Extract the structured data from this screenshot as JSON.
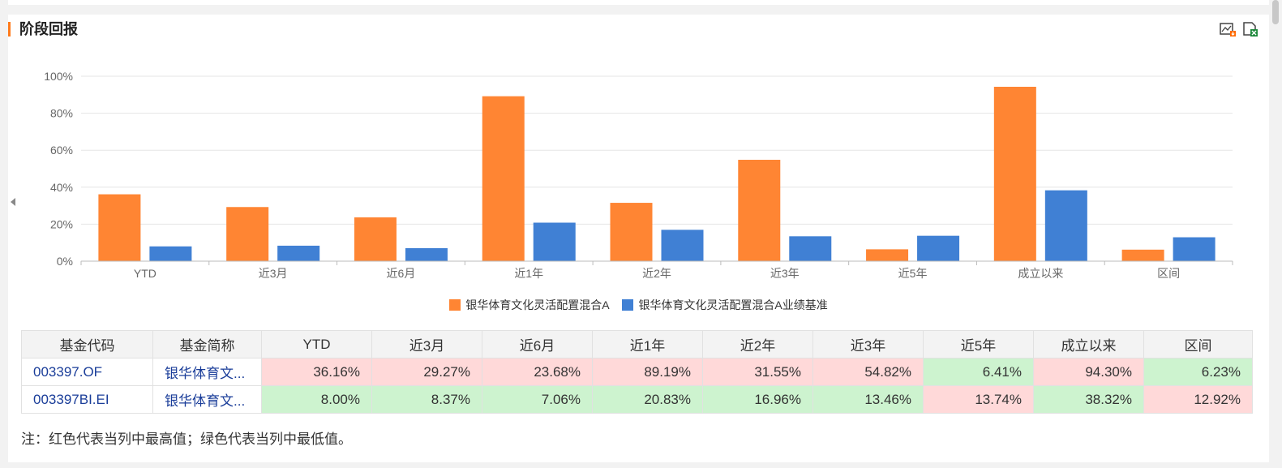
{
  "panel": {
    "title": "阶段回报"
  },
  "toolbar": {
    "icons": [
      "chart-download-icon",
      "excel-export-icon"
    ]
  },
  "colors": {
    "accent": "#ff7a1a",
    "fund": "#ff8533",
    "benchmark": "#4080d4",
    "highest": "#ffd9d9",
    "lowest": "#cdf3cf"
  },
  "chart_data": {
    "type": "bar",
    "categories": [
      "YTD",
      "近3月",
      "近6月",
      "近1年",
      "近2年",
      "近3年",
      "近5年",
      "成立以来",
      "区间"
    ],
    "series": [
      {
        "name": "银华体育文化灵活配置混合A",
        "values": [
          36.16,
          29.27,
          23.68,
          89.19,
          31.55,
          54.82,
          6.41,
          94.3,
          6.23
        ]
      },
      {
        "name": "银华体育文化灵活配置混合A业绩基准",
        "values": [
          8.0,
          8.37,
          7.06,
          20.83,
          16.96,
          13.46,
          13.74,
          38.32,
          12.92
        ]
      }
    ],
    "ylim": [
      0,
      100
    ],
    "yticks": [
      "0%",
      "20%",
      "40%",
      "60%",
      "80%",
      "100%"
    ],
    "grid": true,
    "legend": "bottom-center"
  },
  "table": {
    "headers": [
      "基金代码",
      "基金简称",
      "YTD",
      "近3月",
      "近6月",
      "近1年",
      "近2年",
      "近3年",
      "近5年",
      "成立以来",
      "区间"
    ],
    "rows": [
      {
        "code": "003397.OF",
        "name": "银华体育文...",
        "values": [
          "36.16%",
          "29.27%",
          "23.68%",
          "89.19%",
          "31.55%",
          "54.82%",
          "6.41%",
          "94.30%",
          "6.23%"
        ],
        "marks": [
          "hi",
          "hi",
          "hi",
          "hi",
          "hi",
          "hi",
          "lo",
          "hi",
          "lo"
        ]
      },
      {
        "code": "003397BI.EI",
        "name": "银华体育文...",
        "values": [
          "8.00%",
          "8.37%",
          "7.06%",
          "20.83%",
          "16.96%",
          "13.46%",
          "13.74%",
          "38.32%",
          "12.92%"
        ],
        "marks": [
          "lo",
          "lo",
          "lo",
          "lo",
          "lo",
          "lo",
          "hi",
          "lo",
          "hi"
        ]
      }
    ]
  },
  "note": "注：红色代表当列中最高值；绿色代表当列中最低值。"
}
